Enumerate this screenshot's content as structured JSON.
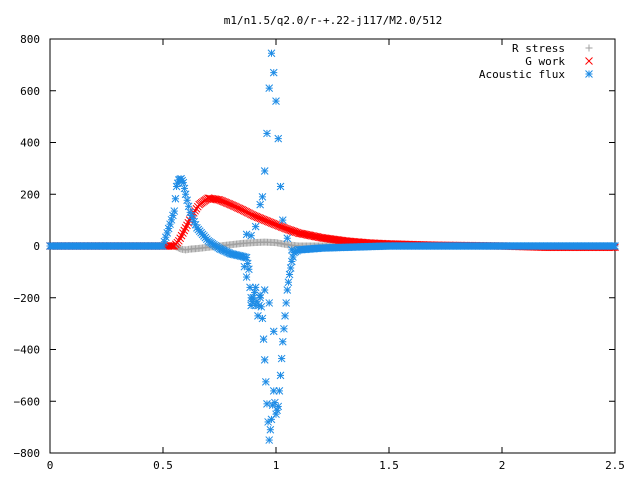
{
  "chart_data": {
    "type": "scatter",
    "title": "m1/n1.5/q2.0/r-+.22-j117/M2.0/512",
    "xlabel": "",
    "ylabel": "",
    "xlim": [
      0,
      2.5
    ],
    "ylim": [
      -800,
      800
    ],
    "x_ticks": [
      "0",
      "0.5",
      "1",
      "1.5",
      "2",
      "2.5"
    ],
    "y_ticks": [
      "800",
      "600",
      "400",
      "200",
      "0",
      "−200",
      "−400",
      "−600",
      "−800"
    ],
    "grid": false,
    "legend_position": "top-right",
    "series": [
      {
        "name": "R stress",
        "marker": "plus",
        "color": "#a0a0a0",
        "x": [
          0.0,
          0.1,
          0.2,
          0.3,
          0.4,
          0.5,
          0.55,
          0.58,
          0.6,
          0.62,
          0.65,
          0.7,
          0.75,
          0.8,
          0.85,
          0.9,
          0.95,
          1.0,
          1.05,
          1.1,
          1.2,
          1.5,
          2.0,
          2.5
        ],
        "y": [
          0,
          0,
          0,
          0,
          0,
          0,
          0,
          -12,
          -15,
          -12,
          -10,
          -5,
          0,
          5,
          10,
          13,
          15,
          13,
          5,
          0,
          0,
          0,
          0,
          0
        ]
      },
      {
        "name": "G work",
        "marker": "cross",
        "color": "#ff0000",
        "x": [
          0.0,
          0.5,
          0.55,
          0.57,
          0.6,
          0.63,
          0.66,
          0.7,
          0.75,
          0.8,
          0.85,
          0.9,
          0.95,
          1.0,
          1.05,
          1.1,
          1.2,
          1.3,
          1.4,
          1.5,
          1.7,
          2.0,
          2.2,
          2.5
        ],
        "y": [
          0,
          0,
          0,
          20,
          70,
          120,
          160,
          185,
          178,
          160,
          140,
          118,
          100,
          82,
          65,
          50,
          32,
          20,
          12,
          8,
          3,
          0,
          -5,
          -5
        ]
      },
      {
        "name": "Acoustic flux",
        "marker": "star",
        "color": "#1e8ce6",
        "x": [
          0.0,
          0.3,
          0.5,
          0.55,
          0.56,
          0.57,
          0.58,
          0.59,
          0.6,
          0.62,
          0.65,
          0.7,
          0.75,
          0.8,
          0.85,
          0.87,
          0.88,
          0.89,
          0.9,
          0.91,
          0.92,
          0.93,
          0.94,
          0.95,
          0.96,
          0.97,
          0.98,
          0.99,
          1.0,
          1.01,
          1.02,
          1.03,
          1.04,
          1.05,
          1.06,
          1.07,
          1.08,
          1.1,
          1.2,
          1.5,
          2.0,
          2.5
        ],
        "y": [
          0,
          0,
          0,
          135,
          230,
          255,
          260,
          245,
          200,
          130,
          70,
          20,
          -10,
          -30,
          -40,
          -45,
          -90,
          -230,
          -200,
          -160,
          -270,
          -190,
          -280,
          -440,
          -610,
          -750,
          -670,
          -560,
          -650,
          -620,
          -500,
          -370,
          -270,
          -170,
          -110,
          -60,
          -25,
          -15,
          -8,
          0,
          0,
          0
        ]
      },
      {
        "name": "",
        "marker": "star",
        "color": "#1e8ce6",
        "x": [
          0.87,
          0.89,
          0.91,
          0.93,
          0.94,
          0.95,
          0.96,
          0.97,
          0.98,
          0.99,
          1.0,
          1.01,
          1.02,
          1.03,
          1.05,
          1.07
        ],
        "y": [
          45,
          40,
          75,
          160,
          190,
          290,
          435,
          610,
          745,
          670,
          560,
          415,
          230,
          100,
          30,
          -15
        ]
      },
      {
        "name": "",
        "marker": "star",
        "color": "#1e8ce6",
        "x": [
          0.86,
          0.87,
          0.89,
          0.91,
          0.93,
          0.95,
          0.97,
          0.99
        ],
        "y": [
          -80,
          -120,
          -200,
          -230,
          -200,
          -170,
          -220,
          -330
        ]
      }
    ]
  }
}
